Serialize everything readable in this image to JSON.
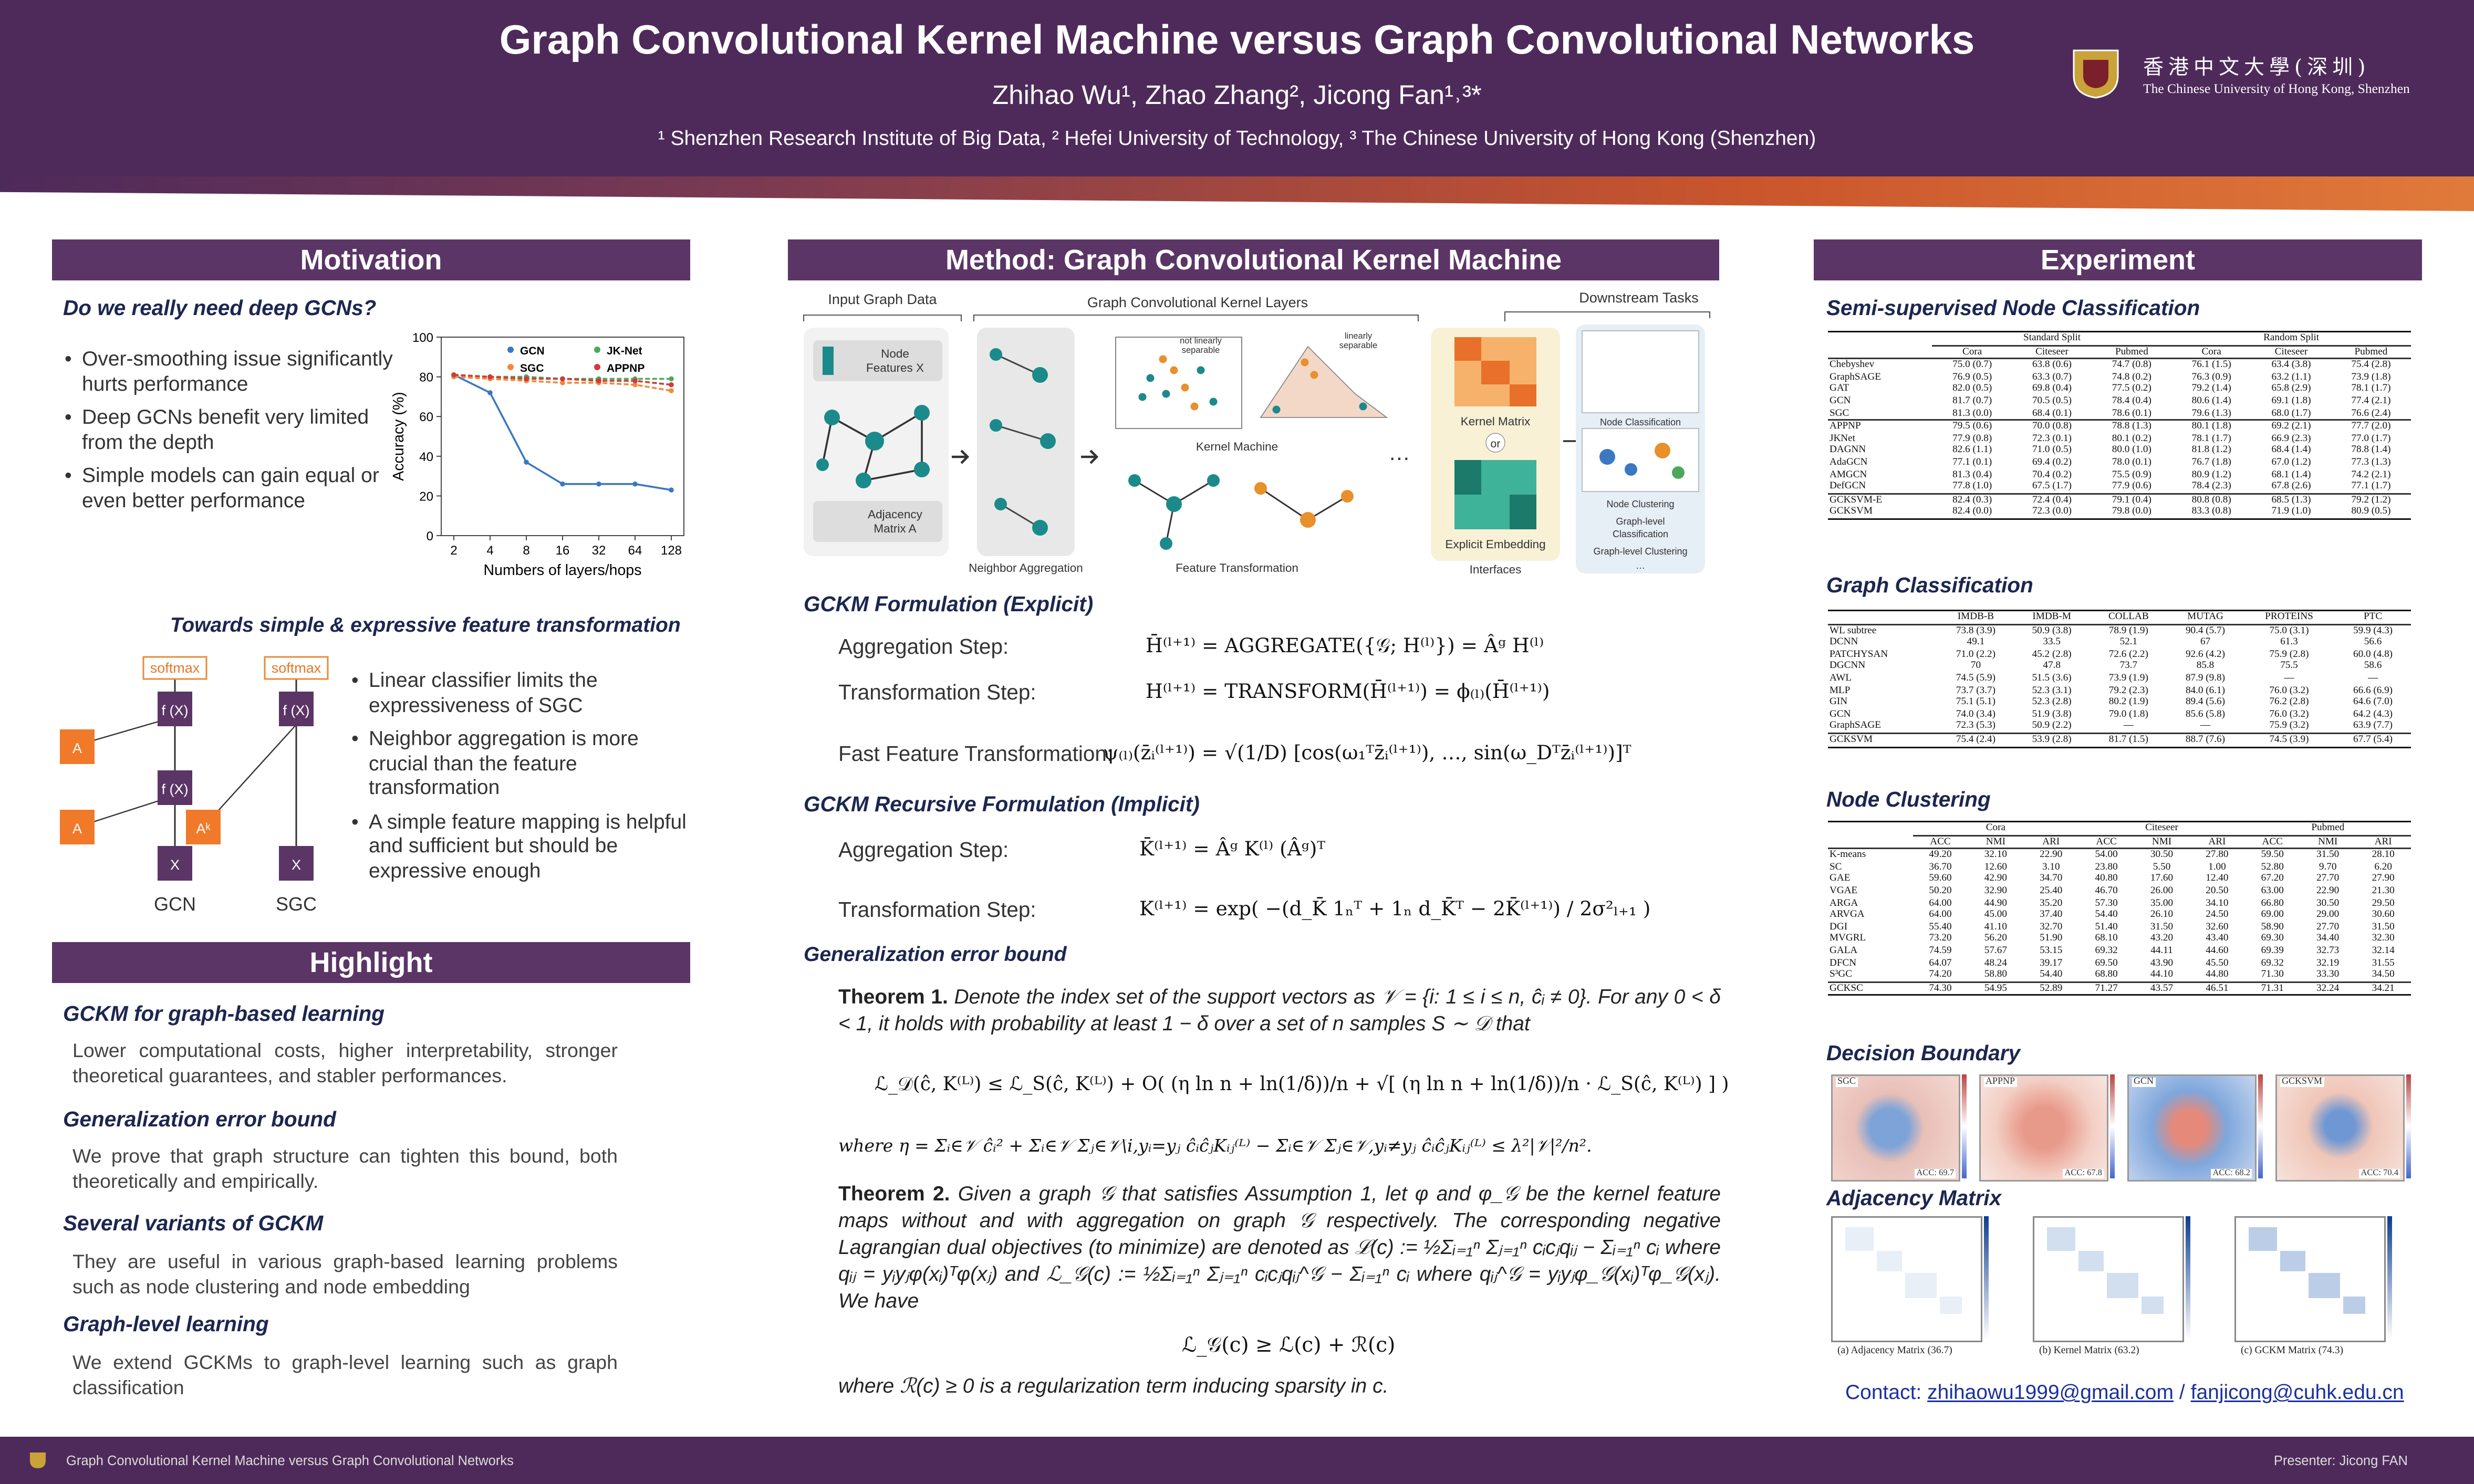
{
  "header": {
    "title": "Graph Convolutional Kernel Machine versus Graph Convolutional Networks",
    "authors": "Zhihao Wu¹, Zhao Zhang², Jicong Fan¹˒³*",
    "affiliations": "¹ Shenzhen Research Institute of Big Data,  ² Hefei University of Technology, ³ The Chinese University of Hong Kong (Shenzhen)",
    "university_cn": "香港中文大學(深圳)",
    "university_en": "The Chinese University of Hong Kong, Shenzhen"
  },
  "motivation": {
    "heading": "Motivation",
    "question": "Do we really need deep GCNs?",
    "bullets": [
      "Over-smoothing issue significantly hurts performance",
      "Deep GCNs benefit very limited from the depth",
      "Simple models can gain equal or even better performance"
    ],
    "subheading": "Towards simple & expressive feature transformation",
    "bullets2": [
      "Linear classifier limits the expressiveness of SGC",
      "Neighbor aggregation is more crucial than the feature transformation",
      "A simple feature mapping is helpful and sufficient but should be expressive enough"
    ],
    "diagram": {
      "softmax": "softmax",
      "f": "f (X)",
      "a": "A",
      "ak": "Aᵏ",
      "x": "X",
      "gcn": "GCN",
      "sgc": "SGC"
    }
  },
  "chart_data": {
    "type": "line",
    "x_label": "Numbers of layers/hops",
    "y_label": "Accuracy (%)",
    "categories": [
      "2",
      "4",
      "8",
      "16",
      "32",
      "64",
      "128"
    ],
    "ylim": [
      0,
      100
    ],
    "yticks": [
      0,
      20,
      40,
      60,
      80,
      100
    ],
    "legend": "upper right",
    "series": [
      {
        "name": "GCN",
        "color": "#3a78c2",
        "values": [
          81,
          72,
          37,
          26,
          26,
          26,
          23
        ]
      },
      {
        "name": "SGC",
        "color": "#f08a3a",
        "values": [
          80,
          79,
          78,
          77,
          77,
          76,
          73
        ]
      },
      {
        "name": "JK-Net",
        "color": "#4ea85a",
        "values": [
          81,
          80,
          80,
          79,
          79,
          79,
          79
        ]
      },
      {
        "name": "APPNP",
        "color": "#d03a3a",
        "values": [
          81,
          80,
          79,
          79,
          78,
          78,
          76
        ]
      }
    ]
  },
  "highlight": {
    "heading": "Highlight",
    "items": [
      {
        "title": "GCKM for graph-based learning",
        "text": "Lower computational costs, higher interpretability, stronger theoretical guarantees, and stabler performances."
      },
      {
        "title": "Generalization error bound",
        "text": "We prove that graph structure can tighten this bound, both theoretically and empirically."
      },
      {
        "title": "Several variants of GCKM",
        "text": "They are useful in various graph-based learning problems such as node clustering and node embedding"
      },
      {
        "title": "Graph-level learning",
        "text": "We extend GCKMs to graph-level learning such as graph classification"
      }
    ]
  },
  "method": {
    "heading": "Method: Graph Convolutional Kernel Machine",
    "diagram": {
      "input": "Input Graph Data",
      "layers": "Graph Convolutional Kernel Layers",
      "downstream": "Downstream Tasks",
      "node_features": [
        "Node",
        "Features X"
      ],
      "adjacency": [
        "Adjacency",
        "Matrix A"
      ],
      "aggregation": "Neighbor Aggregation",
      "transformation": "Feature Transformation",
      "kernel_machine": "Kernel Machine",
      "not_separable": [
        "not linearly",
        "separable"
      ],
      "separable": [
        "linearly",
        "separable"
      ],
      "ellipsis": "…",
      "kernel_matrix": "Kernel Matrix",
      "or": "or",
      "explicit": "Explicit Embedding",
      "interfaces": "Interfaces",
      "tasks": [
        "Node Classification",
        "Node Clustering",
        "Graph-level",
        "Classification",
        "Graph-level Clustering",
        "…"
      ]
    },
    "explicit_heading": "GCKM Formulation (Explicit)",
    "explicit": [
      {
        "label": "Aggregation Step:",
        "formula": "H̄⁽ˡ⁺¹⁾ = AGGREGATE({𝒢; H⁽ˡ⁾}) = Âᵍ H⁽ˡ⁾"
      },
      {
        "label": "Transformation Step:",
        "formula": "H⁽ˡ⁺¹⁾ = TRANSFORM(H̄⁽ˡ⁺¹⁾) = ϕ₍ₗ₎(H̄⁽ˡ⁺¹⁾)"
      },
      {
        "label": "Fast Feature Transformation:",
        "formula": "ψ₍ₗ₎(z̄ᵢ⁽ˡ⁺¹⁾) = √(1/D) [cos(ω₁ᵀz̄ᵢ⁽ˡ⁺¹⁾), …, sin(ω_Dᵀz̄ᵢ⁽ˡ⁺¹⁾)]ᵀ"
      }
    ],
    "implicit_heading": "GCKM Recursive Formulation (Implicit)",
    "implicit": [
      {
        "label": "Aggregation Step:",
        "formula": "K̄⁽ˡ⁺¹⁾ = Âᵍ K⁽ˡ⁾ (Âᵍ)ᵀ"
      },
      {
        "label": "Transformation Step:",
        "formula": "K⁽ˡ⁺¹⁾ = exp( −(d_K̄ 1ₙᵀ + 1ₙ d_K̄ᵀ − 2K̄⁽ˡ⁺¹⁾) / 2σ²ₗ₊₁ )"
      }
    ],
    "bound_heading": "Generalization error bound",
    "theorem1_label": "Theorem 1.",
    "theorem1_text": "Denote the index set of the support vectors as 𝒱 = {i: 1 ≤ i ≤ n, ĉᵢ ≠ 0}. For any 0 < δ < 1, it holds with probability at least 1 − δ over a set of n samples S ∼ 𝒟 that",
    "theorem1_formula": "ℒ_𝒟(ĉ, K⁽ᴸ⁾) ≤ ℒ_S(ĉ, K⁽ᴸ⁾) + O( (η ln n + ln(1/δ))/n + √[ (η ln n + ln(1/δ))/n · ℒ_S(ĉ, K⁽ᴸ⁾) ] )",
    "theorem1_where": "where η = Σᵢ∈𝒱 ĉᵢ² + Σᵢ∈𝒱 Σⱼ∈𝒱\\i,yᵢ=yⱼ ĉᵢĉⱼKᵢⱼ⁽ᴸ⁾ − Σᵢ∈𝒱 Σⱼ∈𝒱,yᵢ≠yⱼ ĉᵢĉⱼKᵢⱼ⁽ᴸ⁾ ≤ λ²|𝒱|²/n².",
    "theorem2_label": "Theorem 2.",
    "theorem2_text": "Given a graph 𝒢 that satisfies Assumption 1, let φ and φ_𝒢 be the kernel feature maps without and with aggregation on graph 𝒢 respectively. The corresponding negative Lagrangian dual objectives (to minimize) are denoted as ℒ(c) := ½Σᵢ₌₁ⁿ Σⱼ₌₁ⁿ cᵢcⱼqᵢⱼ − Σᵢ₌₁ⁿ cᵢ where qᵢⱼ = yᵢyⱼφ(xᵢ)ᵀφ(xⱼ) and ℒ_𝒢(c) := ½Σᵢ₌₁ⁿ Σⱼ₌₁ⁿ cᵢcⱼqᵢⱼ^𝒢 − Σᵢ₌₁ⁿ cᵢ where qᵢⱼ^𝒢 = yᵢyⱼφ_𝒢(xᵢ)ᵀφ_𝒢(xⱼ). We have",
    "theorem2_formula": "ℒ_𝒢(c) ≥ ℒ(c) + ℛ(c)",
    "theorem2_where": "where ℛ(c) ≥ 0 is a regularization term inducing sparsity in c."
  },
  "experiment": {
    "heading": "Experiment",
    "node_classification": {
      "title": "Semi-supervised Node Classification",
      "groups": [
        {
          "name": "Standard Split",
          "columns": [
            "Cora",
            "Citeseer",
            "Pubmed"
          ]
        },
        {
          "name": "Random Split",
          "columns": [
            "Cora",
            "Citeseer",
            "Pubmed"
          ]
        }
      ],
      "row_groups": [
        [
          {
            "name": "Chebyshev",
            "values": [
              "75.0 (0.7)",
              "63.8 (0.6)",
              "74.7 (0.8)",
              "76.1 (1.5)",
              "63.4 (3.8)",
              "75.4 (2.8)"
            ]
          },
          {
            "name": "GraphSAGE",
            "values": [
              "76.9 (0.5)",
              "63.3 (0.7)",
              "74.8 (0.2)",
              "76.3 (0.9)",
              "63.2 (1.1)",
              "73.9 (1.8)"
            ]
          },
          {
            "name": "GAT",
            "values": [
              "82.0 (0.5)",
              "69.8 (0.4)",
              "77.5 (0.2)",
              "79.2 (1.4)",
              "65.8 (2.9)",
              "78.1 (1.7)"
            ]
          },
          {
            "name": "GCN",
            "values": [
              "81.7 (0.7)",
              "70.5 (0.5)",
              "78.4 (0.4)",
              "80.6 (1.4)",
              "69.1 (1.8)",
              "77.4 (2.1)"
            ]
          },
          {
            "name": "SGC",
            "values": [
              "81.3 (0.0)",
              "68.4 (0.1)",
              "78.6 (0.1)",
              "79.6 (1.3)",
              "68.0 (1.7)",
              "76.6 (2.4)"
            ]
          }
        ],
        [
          {
            "name": "APPNP",
            "values": [
              "79.5 (0.6)",
              "70.0 (0.8)",
              "78.8 (1.3)",
              "80.1 (1.8)",
              "69.2 (2.1)",
              "77.7 (2.0)"
            ]
          },
          {
            "name": "JKNet",
            "values": [
              "77.9 (0.8)",
              "72.3 (0.1)",
              "80.1 (0.2)",
              "78.1 (1.7)",
              "66.9 (2.3)",
              "77.0 (1.7)"
            ]
          },
          {
            "name": "DAGNN",
            "values": [
              "82.6 (1.1)",
              "71.0 (0.5)",
              "80.0 (1.0)",
              "81.8 (1.2)",
              "68.4 (1.4)",
              "78.8 (1.4)"
            ]
          },
          {
            "name": "AdaGCN",
            "values": [
              "77.1 (0.1)",
              "69.4 (0.2)",
              "78.0 (0.1)",
              "76.7 (1.8)",
              "67.0 (1.2)",
              "77.3 (1.3)"
            ]
          },
          {
            "name": "AMGCN",
            "values": [
              "81.3 (0.4)",
              "70.4 (0.2)",
              "75.5 (0.9)",
              "80.9 (1.2)",
              "68.1 (1.4)",
              "74.2 (2.1)"
            ]
          },
          {
            "name": "DefGCN",
            "values": [
              "77.8 (1.0)",
              "67.5 (1.7)",
              "77.9 (0.6)",
              "78.4 (2.3)",
              "67.8 (2.6)",
              "77.1 (1.7)"
            ]
          }
        ],
        [
          {
            "name": "GCKSVM-E",
            "values": [
              "82.4 (0.3)",
              "72.4 (0.4)",
              "79.1 (0.4)",
              "80.8 (0.8)",
              "68.5 (1.3)",
              "79.2 (1.2)"
            ]
          },
          {
            "name": "GCKSVM",
            "values": [
              "82.4 (0.0)",
              "72.3 (0.0)",
              "79.8 (0.0)",
              "83.3 (0.8)",
              "71.9 (1.0)",
              "80.9 (0.5)"
            ]
          }
        ]
      ]
    },
    "graph_classification": {
      "title": "Graph Classification",
      "groups": [
        {
          "name": "",
          "columns": [
            "IMDB-B",
            "IMDB-M",
            "COLLAB",
            "MUTAG",
            "PROTEINS",
            "PTC"
          ]
        }
      ],
      "row_groups": [
        [
          {
            "name": "WL subtree",
            "values": [
              "73.8 (3.9)",
              "50.9 (3.8)",
              "78.9 (1.9)",
              "90.4 (5.7)",
              "75.0 (3.1)",
              "59.9 (4.3)"
            ]
          },
          {
            "name": "DCNN",
            "values": [
              "49.1",
              "33.5",
              "52.1",
              "67",
              "61.3",
              "56.6"
            ]
          },
          {
            "name": "PATCHYSAN",
            "values": [
              "71.0 (2.2)",
              "45.2 (2.8)",
              "72.6 (2.2)",
              "92.6 (4.2)",
              "75.9 (2.8)",
              "60.0 (4.8)"
            ]
          },
          {
            "name": "DGCNN",
            "values": [
              "70",
              "47.8",
              "73.7",
              "85.8",
              "75.5",
              "58.6"
            ]
          },
          {
            "name": "AWL",
            "values": [
              "74.5 (5.9)",
              "51.5 (3.6)",
              "73.9 (1.9)",
              "87.9 (9.8)",
              "—",
              "—"
            ]
          },
          {
            "name": "MLP",
            "values": [
              "73.7 (3.7)",
              "52.3 (3.1)",
              "79.2 (2.3)",
              "84.0 (6.1)",
              "76.0 (3.2)",
              "66.6 (6.9)"
            ]
          },
          {
            "name": "GIN",
            "values": [
              "75.1 (5.1)",
              "52.3 (2.8)",
              "80.2 (1.9)",
              "89.4 (5.6)",
              "76.2 (2.8)",
              "64.6 (7.0)"
            ]
          },
          {
            "name": "GCN",
            "values": [
              "74.0 (3.4)",
              "51.9 (3.8)",
              "79.0 (1.8)",
              "85.6 (5.8)",
              "76.0 (3.2)",
              "64.2 (4.3)"
            ]
          },
          {
            "name": "GraphSAGE",
            "values": [
              "72.3 (5.3)",
              "50.9 (2.2)",
              "—",
              "—",
              "75.9 (3.2)",
              "63.9 (7.7)"
            ]
          }
        ],
        [
          {
            "name": "GCKSVM",
            "values": [
              "75.4 (2.4)",
              "53.9 (2.8)",
              "81.7 (1.5)",
              "88.7 (7.6)",
              "74.5 (3.9)",
              "67.7 (5.4)"
            ]
          }
        ]
      ]
    },
    "node_clustering": {
      "title": "Node Clustering",
      "groups": [
        {
          "name": "Cora",
          "columns": [
            "ACC",
            "NMI",
            "ARI"
          ]
        },
        {
          "name": "Citeseer",
          "columns": [
            "ACC",
            "NMI",
            "ARI"
          ]
        },
        {
          "name": "Pubmed",
          "columns": [
            "ACC",
            "NMI",
            "ARI"
          ]
        }
      ],
      "row_groups": [
        [
          {
            "name": "K-means",
            "values": [
              "49.20",
              "32.10",
              "22.90",
              "54.00",
              "30.50",
              "27.80",
              "59.50",
              "31.50",
              "28.10"
            ]
          },
          {
            "name": "SC",
            "values": [
              "36.70",
              "12.60",
              "3.10",
              "23.80",
              "5.50",
              "1.00",
              "52.80",
              "9.70",
              "6.20"
            ]
          },
          {
            "name": "GAE",
            "values": [
              "59.60",
              "42.90",
              "34.70",
              "40.80",
              "17.60",
              "12.40",
              "67.20",
              "27.70",
              "27.90"
            ]
          },
          {
            "name": "VGAE",
            "values": [
              "50.20",
              "32.90",
              "25.40",
              "46.70",
              "26.00",
              "20.50",
              "63.00",
              "22.90",
              "21.30"
            ]
          },
          {
            "name": "ARGA",
            "values": [
              "64.00",
              "44.90",
              "35.20",
              "57.30",
              "35.00",
              "34.10",
              "66.80",
              "30.50",
              "29.50"
            ]
          },
          {
            "name": "ARVGA",
            "values": [
              "64.00",
              "45.00",
              "37.40",
              "54.40",
              "26.10",
              "24.50",
              "69.00",
              "29.00",
              "30.60"
            ]
          },
          {
            "name": "DGI",
            "values": [
              "55.40",
              "41.10",
              "32.70",
              "51.40",
              "31.50",
              "32.60",
              "58.90",
              "27.70",
              "31.50"
            ]
          },
          {
            "name": "MVGRL",
            "values": [
              "73.20",
              "56.20",
              "51.90",
              "68.10",
              "43.20",
              "43.40",
              "69.30",
              "34.40",
              "32.30"
            ]
          },
          {
            "name": "GALA",
            "values": [
              "74.59",
              "57.67",
              "53.15",
              "69.32",
              "44.11",
              "44.60",
              "69.39",
              "32.73",
              "32.14"
            ]
          },
          {
            "name": "DFCN",
            "values": [
              "64.07",
              "48.24",
              "39.17",
              "69.50",
              "43.90",
              "45.50",
              "69.32",
              "32.19",
              "31.55"
            ]
          },
          {
            "name": "S³GC",
            "values": [
              "74.20",
              "58.80",
              "54.40",
              "68.80",
              "44.10",
              "44.80",
              "71.30",
              "33.30",
              "34.50"
            ]
          }
        ],
        [
          {
            "name": "GCKSC",
            "values": [
              "74.30",
              "54.95",
              "52.89",
              "71.27",
              "43.57",
              "46.51",
              "71.31",
              "32.24",
              "34.21"
            ]
          }
        ]
      ]
    },
    "decision_boundary": {
      "title": "Decision Boundary",
      "panels": [
        {
          "name": "SGC",
          "acc": "ACC: 69.7"
        },
        {
          "name": "APPNP",
          "acc": "ACC: 67.8"
        },
        {
          "name": "GCN",
          "acc": "ACC: 68.2"
        },
        {
          "name": "GCKSVM",
          "acc": "ACC: 70.4"
        }
      ]
    },
    "adjacency": {
      "title": "Adjacency Matrix",
      "captions": [
        "(a) Adjacency Matrix (36.7)",
        "(b) Kernel Matrix (63.2)",
        "(c) GCKM Matrix (74.3)"
      ]
    },
    "contact": {
      "label": "Contact:",
      "email1": "zhihaowu1999@gmail.com",
      "sep": "/",
      "email2": "fanjicong@cuhk.edu.cn"
    }
  },
  "footer": {
    "left": "Graph Convolutional Kernel Machine versus Graph Convolutional Networks",
    "right": "Presenter: Jicong FAN"
  }
}
